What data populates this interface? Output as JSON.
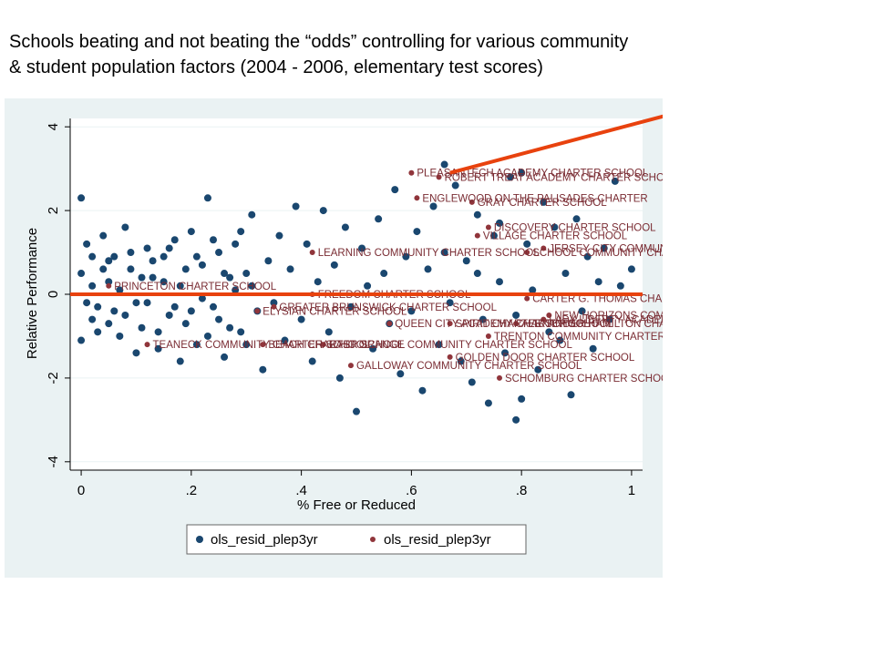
{
  "slide": {
    "title_line1": "Schools beating and not beating the “odds” controlling for various community",
    "title_line2": "& student population factors (2004 - 2006, elementary test scores)"
  },
  "colors": {
    "plot_background": "#eaf2f3",
    "plot_region": "#ffffff",
    "series_all": "#1a476f",
    "series_charter": "#90353b",
    "reference_line": "#e8420e",
    "charter_label": "#7a2c33"
  },
  "chart_data": {
    "type": "scatter",
    "xlabel": "% Free or Reduced",
    "ylabel": "Relative Performance",
    "xlim": [
      -0.02,
      1.02
    ],
    "ylim": [
      -4.2,
      4.2
    ],
    "x_ticks": [
      0,
      0.2,
      0.4,
      0.6,
      0.8,
      1
    ],
    "x_tick_labels": [
      "0",
      ".2",
      ".4",
      ".6",
      ".8",
      "1"
    ],
    "y_ticks": [
      -4,
      -2,
      0,
      2,
      4
    ],
    "y_tick_labels": [
      "-4",
      "-2",
      "0",
      "2",
      "4"
    ],
    "grid": true,
    "legend": {
      "placement": "bottom",
      "entries": [
        "ols_resid_plep3yr",
        "ols_resid_plep3yr"
      ]
    },
    "series": [
      {
        "name": "ols_resid_plep3yr",
        "description_note": null,
        "points": [
          [
            0.0,
            2.3
          ],
          [
            0.01,
            1.2
          ],
          [
            0.02,
            0.9
          ],
          [
            0.0,
            0.5
          ],
          [
            0.01,
            -0.2
          ],
          [
            0.02,
            -0.6
          ],
          [
            0.03,
            -0.9
          ],
          [
            0.0,
            -1.1
          ],
          [
            0.04,
            1.4
          ],
          [
            0.05,
            0.8
          ],
          [
            0.05,
            0.3
          ],
          [
            0.06,
            -0.4
          ],
          [
            0.07,
            -1.0
          ],
          [
            0.08,
            1.6
          ],
          [
            0.09,
            0.6
          ],
          [
            0.1,
            -0.2
          ],
          [
            0.11,
            -0.8
          ],
          [
            0.12,
            1.1
          ],
          [
            0.13,
            0.4
          ],
          [
            0.14,
            -1.3
          ],
          [
            0.15,
            0.9
          ],
          [
            0.16,
            -0.5
          ],
          [
            0.17,
            1.3
          ],
          [
            0.18,
            0.2
          ],
          [
            0.19,
            -0.7
          ],
          [
            0.2,
            1.5
          ],
          [
            0.21,
            -1.2
          ],
          [
            0.22,
            0.7
          ],
          [
            0.23,
            2.3
          ],
          [
            0.24,
            -0.3
          ],
          [
            0.25,
            1.0
          ],
          [
            0.26,
            -1.5
          ],
          [
            0.27,
            0.4
          ],
          [
            0.28,
            1.2
          ],
          [
            0.29,
            -0.9
          ],
          [
            0.3,
            0.5
          ],
          [
            0.31,
            1.9
          ],
          [
            0.32,
            -0.4
          ],
          [
            0.33,
            -1.8
          ],
          [
            0.34,
            0.8
          ],
          [
            0.35,
            -0.2
          ],
          [
            0.36,
            1.4
          ],
          [
            0.37,
            -1.1
          ],
          [
            0.38,
            0.6
          ],
          [
            0.39,
            2.1
          ],
          [
            0.4,
            -0.6
          ],
          [
            0.41,
            1.2
          ],
          [
            0.42,
            -1.6
          ],
          [
            0.43,
            0.3
          ],
          [
            0.44,
            2.0
          ],
          [
            0.45,
            -0.9
          ],
          [
            0.46,
            0.7
          ],
          [
            0.47,
            -2.0
          ],
          [
            0.48,
            1.6
          ],
          [
            0.49,
            -0.3
          ],
          [
            0.5,
            -2.8
          ],
          [
            0.51,
            1.1
          ],
          [
            0.52,
            0.2
          ],
          [
            0.53,
            -1.3
          ],
          [
            0.54,
            1.8
          ],
          [
            0.55,
            0.5
          ],
          [
            0.56,
            -0.7
          ],
          [
            0.57,
            2.5
          ],
          [
            0.58,
            -1.9
          ],
          [
            0.59,
            0.9
          ],
          [
            0.6,
            -0.4
          ],
          [
            0.61,
            1.5
          ],
          [
            0.62,
            -2.3
          ],
          [
            0.63,
            0.6
          ],
          [
            0.64,
            2.1
          ],
          [
            0.65,
            -1.2
          ],
          [
            0.66,
            1.0
          ],
          [
            0.67,
            -0.2
          ],
          [
            0.68,
            2.6
          ],
          [
            0.69,
            -1.6
          ],
          [
            0.7,
            0.8
          ],
          [
            0.71,
            -2.1
          ],
          [
            0.72,
            1.9
          ],
          [
            0.73,
            -0.6
          ],
          [
            0.74,
            -2.6
          ],
          [
            0.75,
            1.4
          ],
          [
            0.76,
            0.3
          ],
          [
            0.77,
            -1.4
          ],
          [
            0.78,
            2.8
          ],
          [
            0.79,
            -0.5
          ],
          [
            0.8,
            -2.5
          ],
          [
            0.81,
            1.2
          ],
          [
            0.82,
            0.1
          ],
          [
            0.83,
            -1.8
          ],
          [
            0.84,
            2.2
          ],
          [
            0.85,
            -0.9
          ],
          [
            0.86,
            1.6
          ],
          [
            0.87,
            -1.1
          ],
          [
            0.88,
            0.5
          ],
          [
            0.89,
            -2.4
          ],
          [
            0.9,
            1.8
          ],
          [
            0.91,
            -0.4
          ],
          [
            0.92,
            0.9
          ],
          [
            0.93,
            -1.3
          ],
          [
            0.94,
            0.3
          ],
          [
            0.95,
            1.1
          ],
          [
            0.96,
            -0.6
          ],
          [
            0.97,
            2.7
          ],
          [
            0.98,
            0.2
          ],
          [
            1.0,
            0.6
          ],
          [
            0.79,
            -3.0
          ],
          [
            0.66,
            3.1
          ],
          [
            0.8,
            2.9
          ],
          [
            0.72,
            0.5
          ],
          [
            0.76,
            1.7
          ],
          [
            0.02,
            0.2
          ],
          [
            0.03,
            -0.3
          ],
          [
            0.04,
            0.6
          ],
          [
            0.05,
            -0.7
          ],
          [
            0.06,
            0.9
          ],
          [
            0.07,
            0.1
          ],
          [
            0.08,
            -0.5
          ],
          [
            0.09,
            1.0
          ],
          [
            0.1,
            -1.4
          ],
          [
            0.11,
            0.4
          ],
          [
            0.12,
            -0.2
          ],
          [
            0.13,
            0.8
          ],
          [
            0.14,
            -0.9
          ],
          [
            0.15,
            0.3
          ],
          [
            0.16,
            1.1
          ],
          [
            0.17,
            -0.3
          ],
          [
            0.18,
            -1.6
          ],
          [
            0.19,
            0.6
          ],
          [
            0.2,
            -0.4
          ],
          [
            0.21,
            0.9
          ],
          [
            0.22,
            -0.1
          ],
          [
            0.23,
            -1.0
          ],
          [
            0.24,
            1.3
          ],
          [
            0.25,
            -0.6
          ],
          [
            0.26,
            0.5
          ],
          [
            0.27,
            -0.8
          ],
          [
            0.28,
            0.1
          ],
          [
            0.29,
            1.5
          ],
          [
            0.3,
            -1.2
          ],
          [
            0.31,
            0.2
          ]
        ]
      },
      {
        "name": "ols_resid_plep3yr",
        "points": [
          [
            0.6,
            2.9
          ],
          [
            0.65,
            2.8
          ],
          [
            0.61,
            2.3
          ],
          [
            0.71,
            2.2
          ],
          [
            0.74,
            1.6
          ],
          [
            0.72,
            1.4
          ],
          [
            0.42,
            1.0
          ],
          [
            0.84,
            1.1
          ],
          [
            0.81,
            1.0
          ],
          [
            0.05,
            0.2
          ],
          [
            0.42,
            0.0
          ],
          [
            0.81,
            -0.1
          ],
          [
            0.35,
            -0.3
          ],
          [
            0.32,
            -0.4
          ],
          [
            0.85,
            -0.5
          ],
          [
            0.84,
            -0.6
          ],
          [
            0.56,
            -0.7
          ],
          [
            0.67,
            -0.7
          ],
          [
            0.79,
            -0.7
          ],
          [
            0.12,
            -1.2
          ],
          [
            0.33,
            -1.2
          ],
          [
            0.44,
            -1.2
          ],
          [
            0.74,
            -1.0
          ],
          [
            0.67,
            -1.5
          ],
          [
            0.49,
            -1.7
          ],
          [
            0.76,
            -2.0
          ]
        ],
        "labels": [
          {
            "x": 0.6,
            "y": 2.9,
            "text": "PLEASANTECH ACADEMY CHARTER SCHOOL"
          },
          {
            "x": 0.65,
            "y": 2.8,
            "text": "ROBERT TREAT ACADEMY CHARTER SCHOOL"
          },
          {
            "x": 0.61,
            "y": 2.3,
            "text": "ENGLEWOOD ON THE PALISADES CHARTER"
          },
          {
            "x": 0.71,
            "y": 2.2,
            "text": "GRAY CHARTER SCHOOL"
          },
          {
            "x": 0.74,
            "y": 1.6,
            "text": "DISCOVERY CHARTER SCHOOL"
          },
          {
            "x": 0.72,
            "y": 1.4,
            "text": "VILLAGE CHARTER SCHOOL"
          },
          {
            "x": 0.42,
            "y": 1.0,
            "text": "LEARNING COMMUNITY CHARTER SCHOOL"
          },
          {
            "x": 0.84,
            "y": 1.1,
            "text": "JERSEY CITY COMMUNITY CHARTER SCHO"
          },
          {
            "x": 0.81,
            "y": 1.0,
            "text": "SCHOOL COMMUNITY CHARTER SCH"
          },
          {
            "x": 0.05,
            "y": 0.2,
            "text": "PRINCETON CHARTER SCHOOL"
          },
          {
            "x": 0.42,
            "y": 0.0,
            "text": "FREEDOM CHARTER SCHOOL"
          },
          {
            "x": 0.81,
            "y": -0.1,
            "text": "CARTER G. THOMAS CHARTER SCHOOL"
          },
          {
            "x": 0.35,
            "y": -0.3,
            "text": "GREATER BRUNSWICK CHARTER SCHOOL"
          },
          {
            "x": 0.32,
            "y": -0.4,
            "text": "ELYSIAN CHARTER SCHOOL"
          },
          {
            "x": 0.85,
            "y": -0.5,
            "text": "NEW HORIZONS COMMUNITY CHARTER SCHO"
          },
          {
            "x": 0.84,
            "y": -0.6,
            "text": "LADY LIBERTY ACADEMY CHARTER SCHOOL"
          },
          {
            "x": 0.56,
            "y": -0.7,
            "text": "QUEEN CITY ACADEMY CHARTER SCHOOL"
          },
          {
            "x": 0.67,
            "y": -0.7,
            "text": "SPIRIT CHARTER SCHOOL"
          },
          {
            "x": 0.79,
            "y": -0.7,
            "text": "ALEXANDER HAMILTON CHARTER SCHOOL"
          },
          {
            "x": 0.12,
            "y": -1.2,
            "text": "TEANECK COMMUNITY CHARTER SCHOOL"
          },
          {
            "x": 0.33,
            "y": -1.2,
            "text": "BEACH CHARTER SCHOOL"
          },
          {
            "x": 0.44,
            "y": -1.2,
            "text": "EAST ORANGE COMMUNITY CHARTER SCHOOL"
          },
          {
            "x": 0.74,
            "y": -1.0,
            "text": "TRENTON COMMUNITY CHARTER SCHOOL"
          },
          {
            "x": 0.67,
            "y": -1.5,
            "text": "GOLDEN DOOR CHARTER SCHOOL"
          },
          {
            "x": 0.49,
            "y": -1.7,
            "text": "GALLOWAY COMMUNITY CHARTER SCHOOL"
          },
          {
            "x": 0.76,
            "y": -2.0,
            "text": "SCHOMBURG CHARTER SCHOOL"
          }
        ]
      }
    ]
  }
}
